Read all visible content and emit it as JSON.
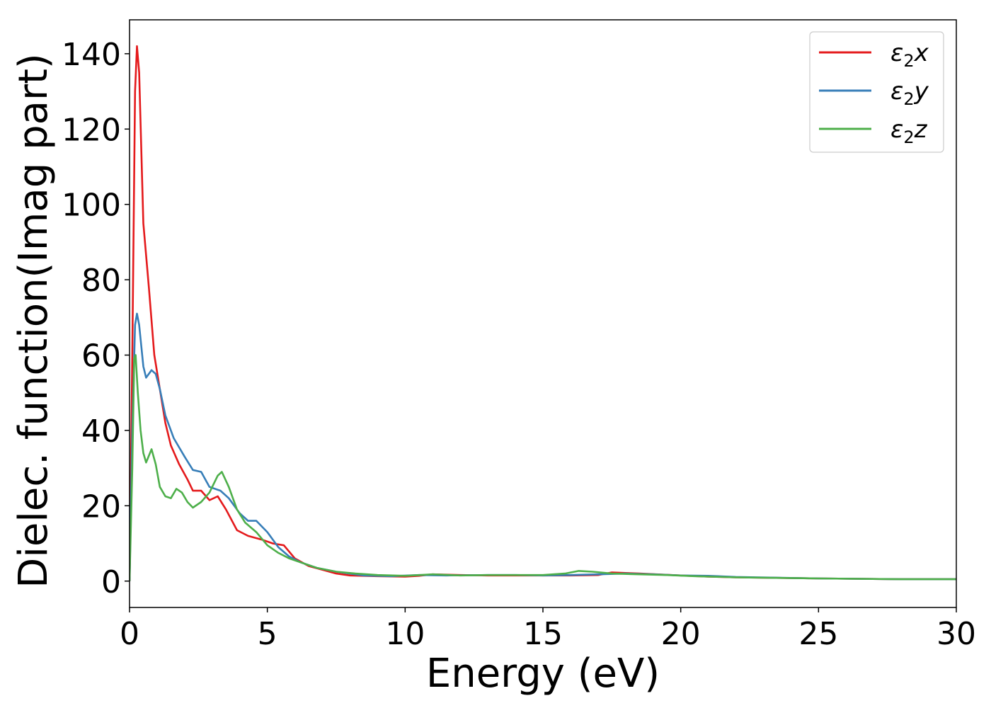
{
  "chart_data": {
    "type": "line",
    "xlabel": "Energy (eV)",
    "ylabel": "Dielec. function(Imag part)",
    "xlim": [
      0,
      30
    ],
    "ylim": [
      -7,
      149
    ],
    "xticks": [
      0,
      5,
      10,
      15,
      20,
      25,
      30
    ],
    "yticks": [
      0,
      20,
      40,
      60,
      80,
      100,
      120,
      140
    ],
    "grid": false,
    "legend_position": "top-right",
    "series": [
      {
        "name": "ε2x",
        "legend": {
          "symbol": "ε",
          "sub": "2",
          "suffix": "x"
        },
        "color": "#e41a1c",
        "points": [
          [
            0,
            0
          ],
          [
            0.1,
            60
          ],
          [
            0.2,
            130
          ],
          [
            0.27,
            142
          ],
          [
            0.35,
            135
          ],
          [
            0.5,
            95
          ],
          [
            0.7,
            78
          ],
          [
            0.9,
            60
          ],
          [
            1.1,
            51
          ],
          [
            1.3,
            42
          ],
          [
            1.5,
            36
          ],
          [
            1.8,
            31
          ],
          [
            2.1,
            27
          ],
          [
            2.3,
            24
          ],
          [
            2.6,
            24
          ],
          [
            2.9,
            21.5
          ],
          [
            3.2,
            22.5
          ],
          [
            3.5,
            19
          ],
          [
            3.9,
            13.5
          ],
          [
            4.3,
            12
          ],
          [
            4.8,
            11
          ],
          [
            5.2,
            10
          ],
          [
            5.6,
            9.5
          ],
          [
            6.0,
            6
          ],
          [
            6.5,
            4
          ],
          [
            7,
            3
          ],
          [
            7.5,
            2
          ],
          [
            8,
            1.5
          ],
          [
            9,
            1.3
          ],
          [
            10,
            1.2
          ],
          [
            10.5,
            1.4
          ],
          [
            11,
            1.8
          ],
          [
            12,
            1.6
          ],
          [
            13,
            1.5
          ],
          [
            14,
            1.5
          ],
          [
            15,
            1.5
          ],
          [
            16,
            1.5
          ],
          [
            17,
            1.6
          ],
          [
            17.5,
            2.3
          ],
          [
            18.5,
            2.0
          ],
          [
            20,
            1.5
          ],
          [
            21,
            1.2
          ],
          [
            22,
            1.0
          ],
          [
            25,
            0.7
          ],
          [
            28,
            0.5
          ],
          [
            30,
            0.5
          ]
        ]
      },
      {
        "name": "ε2y",
        "legend": {
          "symbol": "ε",
          "sub": "2",
          "suffix": "y"
        },
        "color": "#377eb8",
        "points": [
          [
            0,
            0
          ],
          [
            0.1,
            40
          ],
          [
            0.2,
            68
          ],
          [
            0.27,
            71
          ],
          [
            0.35,
            68
          ],
          [
            0.5,
            57
          ],
          [
            0.6,
            54
          ],
          [
            0.8,
            56
          ],
          [
            0.95,
            55
          ],
          [
            1.1,
            51
          ],
          [
            1.3,
            44
          ],
          [
            1.6,
            38
          ],
          [
            2.0,
            33
          ],
          [
            2.3,
            29.5
          ],
          [
            2.6,
            29
          ],
          [
            2.9,
            25
          ],
          [
            3.3,
            24
          ],
          [
            3.6,
            22
          ],
          [
            4.0,
            18
          ],
          [
            4.3,
            16
          ],
          [
            4.6,
            16
          ],
          [
            5.0,
            13
          ],
          [
            5.4,
            9
          ],
          [
            5.8,
            6.5
          ],
          [
            6.2,
            5
          ],
          [
            6.8,
            3.5
          ],
          [
            7.5,
            2.5
          ],
          [
            8.5,
            1.5
          ],
          [
            9.5,
            1.3
          ],
          [
            10.5,
            1.6
          ],
          [
            11.5,
            1.5
          ],
          [
            13,
            1.6
          ],
          [
            14,
            1.6
          ],
          [
            15,
            1.5
          ],
          [
            16,
            1.6
          ],
          [
            17,
            1.8
          ],
          [
            18,
            2.0
          ],
          [
            19,
            1.8
          ],
          [
            20,
            1.5
          ],
          [
            21,
            1.4
          ],
          [
            22,
            1.1
          ],
          [
            25,
            0.7
          ],
          [
            28,
            0.5
          ],
          [
            30,
            0.5
          ]
        ]
      },
      {
        "name": "ε2z",
        "legend": {
          "symbol": "ε",
          "sub": "2",
          "suffix": "z"
        },
        "color": "#4daf4a",
        "points": [
          [
            0,
            0
          ],
          [
            0.1,
            30
          ],
          [
            0.17,
            59
          ],
          [
            0.22,
            60
          ],
          [
            0.3,
            50
          ],
          [
            0.4,
            40
          ],
          [
            0.5,
            34
          ],
          [
            0.6,
            31.5
          ],
          [
            0.8,
            35
          ],
          [
            0.95,
            31
          ],
          [
            1.1,
            25
          ],
          [
            1.3,
            22.5
          ],
          [
            1.5,
            22
          ],
          [
            1.7,
            24.5
          ],
          [
            1.9,
            23.5
          ],
          [
            2.1,
            21
          ],
          [
            2.3,
            19.5
          ],
          [
            2.6,
            21
          ],
          [
            2.9,
            23.5
          ],
          [
            3.2,
            28
          ],
          [
            3.35,
            29
          ],
          [
            3.6,
            25
          ],
          [
            3.9,
            19
          ],
          [
            4.2,
            15.5
          ],
          [
            4.6,
            13
          ],
          [
            5.0,
            9.5
          ],
          [
            5.4,
            7.5
          ],
          [
            5.8,
            6
          ],
          [
            6.2,
            5
          ],
          [
            6.8,
            3.5
          ],
          [
            7.5,
            2.5
          ],
          [
            8.2,
            2
          ],
          [
            9,
            1.6
          ],
          [
            10,
            1.4
          ],
          [
            11,
            1.8
          ],
          [
            12,
            1.5
          ],
          [
            13,
            1.6
          ],
          [
            14,
            1.6
          ],
          [
            15,
            1.6
          ],
          [
            15.8,
            2
          ],
          [
            16.3,
            2.7
          ],
          [
            16.8,
            2.5
          ],
          [
            17.5,
            2
          ],
          [
            18.5,
            1.8
          ],
          [
            19.5,
            1.6
          ],
          [
            20.5,
            1.3
          ],
          [
            22,
            1.0
          ],
          [
            25,
            0.7
          ],
          [
            28,
            0.5
          ],
          [
            30,
            0.5
          ]
        ]
      }
    ]
  }
}
